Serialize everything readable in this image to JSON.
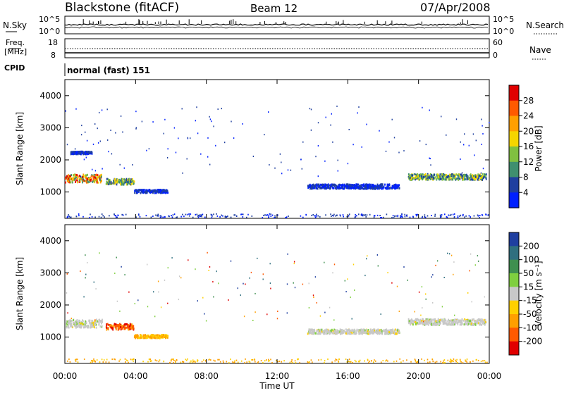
{
  "header": {
    "station": "Blackstone (fitACF)",
    "beam": "Beam 12",
    "date": "07/Apr/2008"
  },
  "top_panel": {
    "left_label": "N.Sky",
    "right_label": "N.Search",
    "left_ticks": [
      "10^5",
      "10^0"
    ],
    "right_ticks": [
      "10^5",
      "10^0"
    ]
  },
  "freq_panel": {
    "left_label_1": "Freq.",
    "left_label_2": "[MHz]",
    "right_label": "Nave",
    "left_ticks": [
      "18",
      "8"
    ],
    "right_ticks": [
      "60",
      "0"
    ]
  },
  "cpid": {
    "label": "CPID",
    "value": "normal (fast) 151"
  },
  "colorbars": {
    "power": {
      "label": "Power [dB]",
      "ticks": [
        "28",
        "24",
        "20",
        "16",
        "12",
        "8",
        "4"
      ],
      "colors": [
        "#e00000",
        "#ff5a00",
        "#ff9f00",
        "#f5d500",
        "#80c040",
        "#3f8f6f",
        "#1f3f9f",
        "#0020ff"
      ]
    },
    "velocity": {
      "label": "Velocity [m s⁻¹]",
      "ticks": [
        "200",
        "100",
        "50",
        "15",
        "-15",
        "-50",
        "-100",
        "-200"
      ],
      "colors": [
        "#1f3fa0",
        "#2f6f7f",
        "#3f8f4f",
        "#7fcf3f",
        "#c8c8c8",
        "#ffd000",
        "#ff9f00",
        "#ff5a00",
        "#e00000"
      ]
    }
  },
  "chart_data": [
    {
      "type": "heatmap",
      "title": "Power",
      "ylabel": "Slant Range [km]",
      "xlabel": "Time UT",
      "yticks": [
        1000,
        2000,
        3000,
        4000
      ],
      "ylim": [
        180,
        4500
      ],
      "xlim_hours": [
        0,
        24
      ],
      "xticks": [
        "00:00",
        "04:00",
        "08:00",
        "12:00",
        "16:00",
        "20:00",
        "00:00"
      ],
      "colorbar": "Power [dB]",
      "regions": [
        {
          "t_start": 0.0,
          "t_end": 2.1,
          "r_center": 1450,
          "r_width": 250,
          "value": "high"
        },
        {
          "t_start": 0.3,
          "t_end": 1.5,
          "r_center": 2250,
          "r_width": 80,
          "value": "low"
        },
        {
          "t_start": 2.3,
          "t_end": 3.9,
          "r_center": 1350,
          "r_width": 180,
          "value": "mid"
        },
        {
          "t_start": 3.9,
          "t_end": 5.8,
          "r_center": 1050,
          "r_width": 100,
          "value": "low"
        },
        {
          "t_start": 13.7,
          "t_end": 18.9,
          "r_center": 1200,
          "r_width": 140,
          "value": "low"
        },
        {
          "t_start": 19.4,
          "t_end": 23.8,
          "r_center": 1500,
          "r_width": 180,
          "value": "mid"
        }
      ]
    },
    {
      "type": "heatmap",
      "title": "Velocity",
      "ylabel": "Slant Range [km]",
      "xlabel": "Time UT",
      "yticks": [
        1000,
        2000,
        3000,
        4000
      ],
      "ylim": [
        180,
        4500
      ],
      "xlim_hours": [
        0,
        24
      ],
      "xticks": [
        "00:00",
        "04:00",
        "08:00",
        "12:00",
        "16:00",
        "20:00",
        "00:00"
      ],
      "colorbar": "Velocity [m s⁻¹]",
      "regions": [
        {
          "t_start": 0.0,
          "t_end": 2.1,
          "r_center": 1450,
          "r_width": 250,
          "value": "near-zero"
        },
        {
          "t_start": 2.3,
          "t_end": 3.9,
          "r_center": 1350,
          "r_width": 180,
          "value": "-100"
        },
        {
          "t_start": 3.9,
          "t_end": 5.8,
          "r_center": 1050,
          "r_width": 100,
          "value": "-50"
        },
        {
          "t_start": 13.7,
          "t_end": 18.9,
          "r_center": 1200,
          "r_width": 140,
          "value": "near-zero"
        },
        {
          "t_start": 19.4,
          "t_end": 23.8,
          "r_center": 1500,
          "r_width": 180,
          "value": "near-zero"
        }
      ]
    }
  ]
}
